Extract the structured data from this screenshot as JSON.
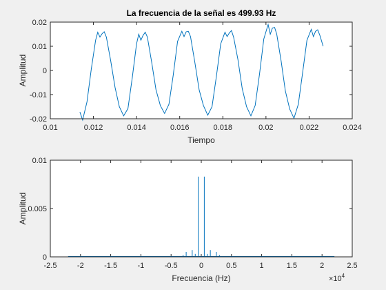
{
  "colors": {
    "line": "#0072bd",
    "axes": "#262626",
    "plot_bg": "#ffffff",
    "figure_bg": "#f0f0f0"
  },
  "chart_data": [
    {
      "type": "line",
      "title": "La frecuencia de la señal es 499.93 Hz",
      "xlabel": "Tiempo",
      "ylabel": "Amplitud",
      "xlim": [
        0.01,
        0.024
      ],
      "ylim": [
        -0.02,
        0.02
      ],
      "xticks": [
        "0.01",
        "0.012",
        "0.014",
        "0.016",
        "0.018",
        "0.02",
        "0.022",
        "0.024"
      ],
      "yticks": [
        "-0.02",
        "-0.01",
        "0",
        "0.01",
        "0.02"
      ],
      "grid": false,
      "series": [
        {
          "x": [
            0.01137,
            0.0115,
            0.0117,
            0.0119,
            0.0121,
            0.0122,
            0.0123,
            0.0124,
            0.0125,
            0.0126,
            0.0128,
            0.013,
            0.0132,
            0.0134,
            0.0136,
            0.0138,
            0.014,
            0.0141,
            0.0142,
            0.0143,
            0.0144,
            0.0145,
            0.0147,
            0.0149,
            0.0151,
            0.0153,
            0.0155,
            0.0157,
            0.0159,
            0.0161,
            0.0162,
            0.0163,
            0.0164,
            0.0165,
            0.0167,
            0.0169,
            0.0171,
            0.0173,
            0.0175,
            0.0177,
            0.0179,
            0.0181,
            0.0182,
            0.0183,
            0.0184,
            0.0185,
            0.0187,
            0.0189,
            0.0191,
            0.0193,
            0.0195,
            0.0197,
            0.0199,
            0.0201,
            0.0202,
            0.0203,
            0.0204,
            0.0205,
            0.0207,
            0.0209,
            0.0211,
            0.0213,
            0.0215,
            0.0217,
            0.0219,
            0.0221,
            0.0222,
            0.0223,
            0.0224,
            0.0225,
            0.02265
          ],
          "y": [
            -0.0172,
            -0.0205,
            -0.013,
            0.0005,
            0.0125,
            0.0158,
            0.0138,
            0.0152,
            0.016,
            0.0138,
            0.004,
            -0.007,
            -0.015,
            -0.0188,
            -0.0158,
            -0.003,
            0.011,
            0.015,
            0.0125,
            0.0145,
            0.0158,
            0.0138,
            0.0035,
            -0.008,
            -0.0145,
            -0.0178,
            -0.014,
            -0.002,
            0.012,
            0.0162,
            0.014,
            0.016,
            0.0162,
            0.014,
            0.0035,
            -0.008,
            -0.0145,
            -0.0185,
            -0.015,
            -0.0025,
            0.011,
            0.0158,
            0.014,
            0.0155,
            0.0165,
            0.0138,
            0.0045,
            -0.0075,
            -0.015,
            -0.0188,
            -0.0145,
            -0.0015,
            0.013,
            0.019,
            0.015,
            0.0175,
            0.0178,
            0.015,
            0.004,
            -0.0085,
            -0.016,
            -0.0198,
            -0.014,
            -0.001,
            0.0125,
            0.017,
            0.014,
            0.0162,
            0.0168,
            0.0145,
            0.01
          ]
        }
      ]
    },
    {
      "type": "line",
      "title": "",
      "xlabel": "Frecuencia (Hz)",
      "ylabel": "Amplitud",
      "xlim": [
        -25000,
        25000
      ],
      "ylim": [
        0,
        0.01
      ],
      "xticks": [
        "-2.5",
        "-2",
        "-1.5",
        "-1",
        "-0.5",
        "0",
        "0.5",
        "1",
        "1.5",
        "2",
        "2.5"
      ],
      "yticks": [
        "0",
        "0.005",
        "0.01"
      ],
      "x_multiplier": "×10",
      "x_multiplier_exp": "4",
      "grid": false,
      "series": [
        {
          "x": [
            -22050,
            -3000,
            -2500,
            -1500,
            -1000,
            -500,
            500,
            1000,
            1500,
            2500,
            3000,
            22050
          ],
          "y": [
            0,
            0.0002,
            0.0005,
            0.0007,
            0.0003,
            0.0083,
            0.0083,
            0.0003,
            0.0007,
            0.0005,
            0.0002,
            0
          ]
        }
      ]
    }
  ]
}
